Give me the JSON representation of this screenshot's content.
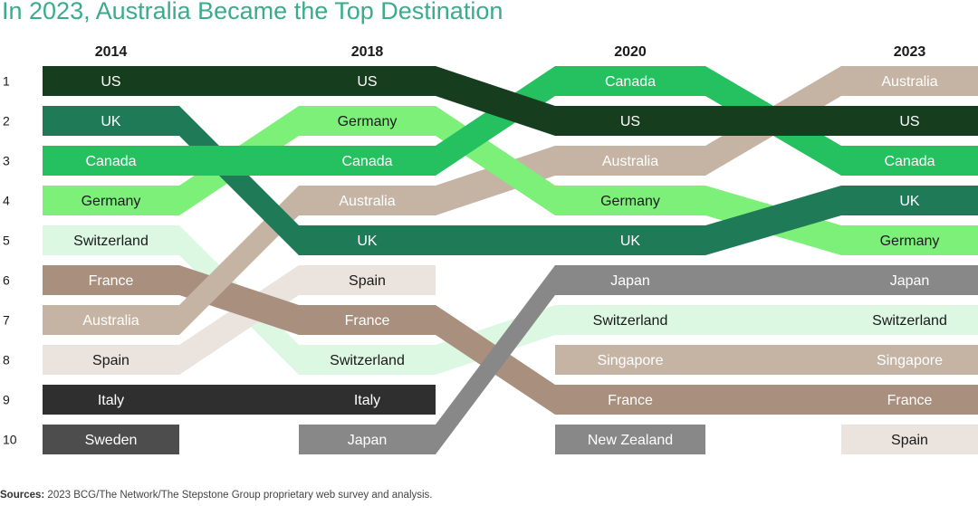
{
  "title": "In 2023, Australia Became the Top Destination",
  "source": {
    "label": "Sources:",
    "text": "2023 BCG/The Network/The Stepstone Group proprietary web survey and analysis."
  },
  "chart_data": {
    "type": "bump",
    "years": [
      "2014",
      "2018",
      "2020",
      "2023"
    ],
    "ranks": [
      1,
      2,
      3,
      4,
      5,
      6,
      7,
      8,
      9,
      10
    ],
    "colors": {
      "US": "#173d1f",
      "UK": "#1e7a57",
      "Canada": "#25c161",
      "Germany": "#7df07a",
      "Switzerland": "#ddf8e2",
      "France": "#a98f7d",
      "Australia": "#c5b4a3",
      "Spain": "#ebe4de",
      "Italy": "#2f2f2f",
      "Sweden": "#4d4d4d",
      "Japan": "#888888",
      "Singapore": "#c5b4a3",
      "New Zealand": "#888888"
    },
    "series": [
      {
        "name": "US",
        "ranks": [
          1,
          1,
          2,
          2
        ],
        "text_color": "#ffffff"
      },
      {
        "name": "UK",
        "ranks": [
          2,
          5,
          5,
          4
        ],
        "text_color": "#ffffff"
      },
      {
        "name": "Canada",
        "ranks": [
          3,
          3,
          1,
          3
        ],
        "text_color": "#ffffff"
      },
      {
        "name": "Germany",
        "ranks": [
          4,
          2,
          4,
          5
        ],
        "text_color": "#1a1a1a"
      },
      {
        "name": "Switzerland",
        "ranks": [
          5,
          8,
          7,
          7
        ],
        "text_color": "#1a1a1a"
      },
      {
        "name": "France",
        "ranks": [
          6,
          7,
          9,
          9
        ],
        "text_color": "#ffffff"
      },
      {
        "name": "Australia",
        "ranks": [
          7,
          4,
          3,
          1
        ],
        "text_color": "#ffffff"
      },
      {
        "name": "Spain",
        "ranks": [
          8,
          6,
          null,
          10
        ],
        "text_color": "#1a1a1a"
      },
      {
        "name": "Italy",
        "ranks": [
          9,
          9,
          null,
          null
        ],
        "text_color": "#ffffff"
      },
      {
        "name": "Sweden",
        "ranks": [
          10,
          null,
          null,
          null
        ],
        "text_color": "#ffffff"
      },
      {
        "name": "Japan",
        "ranks": [
          null,
          10,
          6,
          6
        ],
        "text_color": "#ffffff"
      },
      {
        "name": "Singapore",
        "ranks": [
          null,
          null,
          8,
          8
        ],
        "text_color": "#ffffff"
      },
      {
        "name": "New Zealand",
        "ranks": [
          null,
          null,
          10,
          null
        ],
        "text_color": "#ffffff"
      }
    ]
  }
}
